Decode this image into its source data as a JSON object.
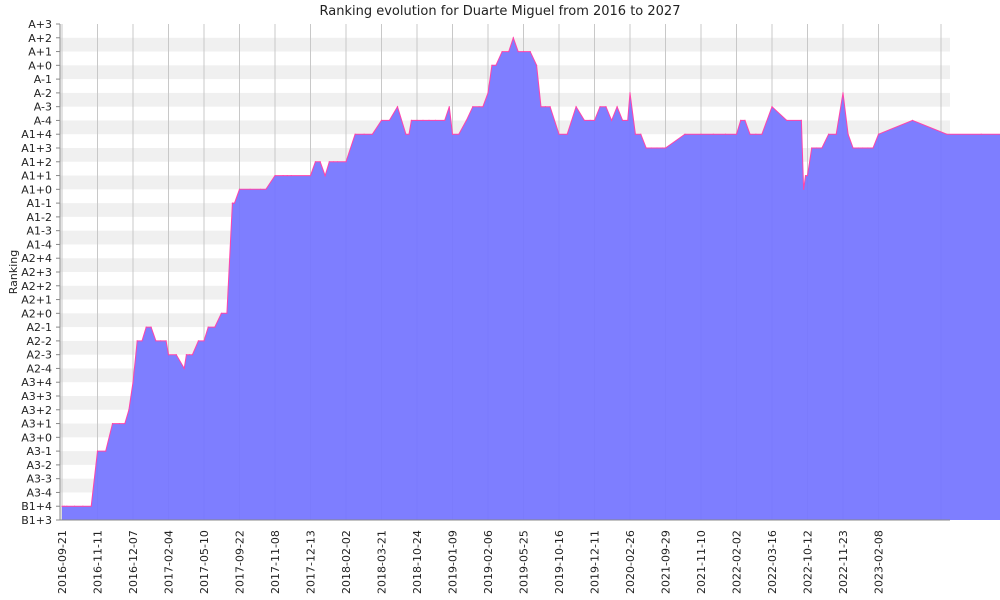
{
  "chart_data": {
    "type": "area",
    "title": "Ranking evolution for Duarte Miguel from 2016 to 2027",
    "xlabel": "",
    "ylabel": "Ranking",
    "y_levels": [
      "B1+3",
      "B1+4",
      "A3-4",
      "A3-3",
      "A3-2",
      "A3-1",
      "A3+0",
      "A3+1",
      "A3+2",
      "A3+3",
      "A3+4",
      "A2-4",
      "A2-3",
      "A2-2",
      "A2-1",
      "A2+0",
      "A2+1",
      "A2+2",
      "A2+3",
      "A2+4",
      "A1-4",
      "A1-3",
      "A1-2",
      "A1-1",
      "A1+0",
      "A1+1",
      "A1+2",
      "A1+3",
      "A1+4",
      "A-4",
      "A-3",
      "A-2",
      "A-1",
      "A+0",
      "A+1",
      "A+2",
      "A+3"
    ],
    "x_ticks": [
      "2016-09-21",
      "2016-11-11",
      "2016-12-07",
      "2017-02-04",
      "2017-05-10",
      "2017-09-22",
      "2017-11-08",
      "2017-12-13",
      "2018-02-02",
      "2018-03-21",
      "2018-10-24",
      "2019-01-09",
      "2019-02-06",
      "2019-05-25",
      "2019-10-16",
      "2019-12-11",
      "2020-02-26",
      "2021-09-29",
      "2021-11-10",
      "2022-02-02",
      "2022-03-16",
      "2022-10-12",
      "2022-11-23",
      "2023-02-08"
    ],
    "grid": true,
    "fill_color": "#7777ff",
    "line_color": "#ff44aa",
    "series": [
      {
        "points": [
          [
            "2016-09-21",
            "B1+4"
          ],
          [
            "2016-09-24",
            "B1+4"
          ],
          [
            "2016-09-28",
            "B1+4"
          ],
          [
            "2016-10-09",
            "B1+4"
          ],
          [
            "2016-10-21",
            "B1+4"
          ],
          [
            "2016-11-02",
            "B1+4"
          ],
          [
            "2016-11-11",
            "A3-1"
          ],
          [
            "2016-11-17",
            "A3-1"
          ],
          [
            "2016-11-22",
            "A3+1"
          ],
          [
            "2016-11-27",
            "A3+1"
          ],
          [
            "2016-12-01",
            "A3+1"
          ],
          [
            "2016-12-04",
            "A3+2"
          ],
          [
            "2016-12-07",
            "A3+4"
          ],
          [
            "2016-12-14",
            "A2-2"
          ],
          [
            "2016-12-22",
            "A2-2"
          ],
          [
            "2016-12-29",
            "A2-1"
          ],
          [
            "2017-01-06",
            "A2-1"
          ],
          [
            "2017-01-14",
            "A2-2"
          ],
          [
            "2017-01-22",
            "A2-2"
          ],
          [
            "2017-01-31",
            "A2-2"
          ],
          [
            "2017-02-04",
            "A2-3"
          ],
          [
            "2017-02-25",
            "A2-3"
          ],
          [
            "2017-03-18",
            "A2-4"
          ],
          [
            "2017-03-24",
            "A2-3"
          ],
          [
            "2017-04-01",
            "A2-3"
          ],
          [
            "2017-04-09",
            "A2-3"
          ],
          [
            "2017-04-25",
            "A2-2"
          ],
          [
            "2017-05-10",
            "A2-2"
          ],
          [
            "2017-05-26",
            "A2-1"
          ],
          [
            "2017-06-20",
            "A2-1"
          ],
          [
            "2017-07-15",
            "A2+0"
          ],
          [
            "2017-08-05",
            "A2+0"
          ],
          [
            "2017-08-26",
            "A1-1"
          ],
          [
            "2017-09-03",
            "A1-1"
          ],
          [
            "2017-09-22",
            "A1+0"
          ],
          [
            "2017-10-06",
            "A1+0"
          ],
          [
            "2017-10-20",
            "A1+0"
          ],
          [
            "2017-10-27",
            "A1+0"
          ],
          [
            "2017-11-08",
            "A1+1"
          ],
          [
            "2017-11-16",
            "A1+1"
          ],
          [
            "2017-11-20",
            "A1+1"
          ],
          [
            "2017-11-24",
            "A1+1"
          ],
          [
            "2017-12-13",
            "A1+1"
          ],
          [
            "2017-12-20",
            "A1+2"
          ],
          [
            "2017-12-27",
            "A1+2"
          ],
          [
            "2018-01-03",
            "A1+1"
          ],
          [
            "2018-01-09",
            "A1+2"
          ],
          [
            "2018-01-15",
            "A1+2"
          ],
          [
            "2018-01-21",
            "A1+2"
          ],
          [
            "2018-02-02",
            "A1+2"
          ],
          [
            "2018-02-14",
            "A1+4"
          ],
          [
            "2018-02-26",
            "A1+4"
          ],
          [
            "2018-03-09",
            "A1+4"
          ],
          [
            "2018-03-21",
            "A-4"
          ],
          [
            "2018-05-08",
            "A-4"
          ],
          [
            "2018-06-27",
            "A-3"
          ],
          [
            "2018-08-17",
            "A1+4"
          ],
          [
            "2018-09-05",
            "A1+4"
          ],
          [
            "2018-09-20",
            "A-4"
          ],
          [
            "2018-10-24",
            "A-4"
          ],
          [
            "2018-11-06",
            "A-4"
          ],
          [
            "2018-11-19",
            "A-4"
          ],
          [
            "2018-12-03",
            "A-4"
          ],
          [
            "2018-12-23",
            "A-4"
          ],
          [
            "2019-01-02",
            "A-3"
          ],
          [
            "2019-01-09",
            "A1+4"
          ],
          [
            "2019-01-14",
            "A1+4"
          ],
          [
            "2019-01-20",
            "A-4"
          ],
          [
            "2019-01-25",
            "A-3"
          ],
          [
            "2019-01-30",
            "A-3"
          ],
          [
            "2019-02-02",
            "A-3"
          ],
          [
            "2019-02-06",
            "A-2"
          ],
          [
            "2019-02-18",
            "A+0"
          ],
          [
            "2019-03-02",
            "A+0"
          ],
          [
            "2019-03-21",
            "A+1"
          ],
          [
            "2019-04-10",
            "A+1"
          ],
          [
            "2019-04-24",
            "A+2"
          ],
          [
            "2019-05-09",
            "A+1"
          ],
          [
            "2019-05-25",
            "A+1"
          ],
          [
            "2019-06-21",
            "A+1"
          ],
          [
            "2019-07-17",
            "A+0"
          ],
          [
            "2019-08-04",
            "A-3"
          ],
          [
            "2019-08-22",
            "A-3"
          ],
          [
            "2019-09-10",
            "A-3"
          ],
          [
            "2019-10-16",
            "A1+4"
          ],
          [
            "2019-10-29",
            "A1+4"
          ],
          [
            "2019-11-12",
            "A-3"
          ],
          [
            "2019-11-25",
            "A-4"
          ],
          [
            "2019-12-04",
            "A-4"
          ],
          [
            "2019-12-11",
            "A-4"
          ],
          [
            "2019-12-23",
            "A-3"
          ],
          [
            "2020-01-05",
            "A-3"
          ],
          [
            "2020-01-17",
            "A-4"
          ],
          [
            "2020-01-29",
            "A-3"
          ],
          [
            "2020-02-10",
            "A-4"
          ],
          [
            "2020-02-21",
            "A-4"
          ],
          [
            "2020-02-26",
            "A-2"
          ],
          [
            "2020-05-24",
            "A1+4"
          ],
          [
            "2020-08-21",
            "A1+4"
          ],
          [
            "2020-11-17",
            "A1+3"
          ],
          [
            "2021-02-14",
            "A1+3"
          ],
          [
            "2021-05-13",
            "A1+3"
          ],
          [
            "2021-08-09",
            "A1+3"
          ],
          [
            "2021-09-29",
            "A1+3"
          ],
          [
            "2021-10-22",
            "A1+4"
          ],
          [
            "2021-11-10",
            "A1+4"
          ],
          [
            "2021-12-09",
            "A1+4"
          ],
          [
            "2022-01-07",
            "A1+4"
          ],
          [
            "2022-02-02",
            "A1+4"
          ],
          [
            "2022-02-07",
            "A-4"
          ],
          [
            "2022-02-12",
            "A-4"
          ],
          [
            "2022-02-18",
            "A1+4"
          ],
          [
            "2022-02-25",
            "A1+4"
          ],
          [
            "2022-03-04",
            "A1+4"
          ],
          [
            "2022-03-16",
            "A-3"
          ],
          [
            "2022-06-11",
            "A-4"
          ],
          [
            "2022-09-06",
            "A-4"
          ],
          [
            "2022-09-19",
            "A1+0"
          ],
          [
            "2022-10-01",
            "A1+1"
          ],
          [
            "2022-10-12",
            "A1+1"
          ],
          [
            "2022-10-17",
            "A1+3"
          ],
          [
            "2022-10-23",
            "A1+3"
          ],
          [
            "2022-10-29",
            "A1+3"
          ],
          [
            "2022-11-06",
            "A1+4"
          ],
          [
            "2022-11-15",
            "A1+4"
          ],
          [
            "2022-11-23",
            "A-2"
          ],
          [
            "2022-12-04",
            "A1+4"
          ],
          [
            "2022-12-15",
            "A1+3"
          ],
          [
            "2022-12-26",
            "A1+3"
          ],
          [
            "2023-01-05",
            "A1+3"
          ],
          [
            "2023-01-16",
            "A1+3"
          ],
          [
            "2023-01-27",
            "A1+3"
          ],
          [
            "2023-02-08",
            "A1+4"
          ],
          [
            "2023-06-03",
            "A-4"
          ],
          [
            "2023-09-27",
            "A1+4"
          ],
          [
            "2024-01-21",
            "A1+4"
          ],
          [
            "2024-05-16",
            "A1+4"
          ],
          [
            "2024-09-09",
            "A1+4"
          ]
        ]
      }
    ]
  }
}
